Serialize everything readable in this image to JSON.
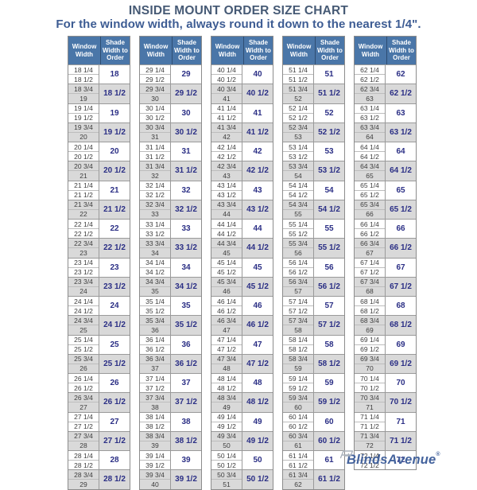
{
  "title": "INSIDE MOUNT ORDER SIZE CHART",
  "subtitle": "For the window width, always round it down to the nearest 1/4\".",
  "logo": {
    "text": "BlindsAvenue",
    "reg": "®"
  },
  "colors": {
    "header_bg": "#4a76a8",
    "header_text": "#ffffff",
    "alt_row_bg": "#d9d9d9",
    "shade_value_text": "#2b2f85",
    "window_value_text": "#3d3d3d",
    "title_text": "#465a75",
    "subtitle_text": "#3d5c93",
    "logo_text": "#44639d"
  },
  "table": {
    "headers": {
      "window": "Window Width",
      "shade": "Shade Width to Order"
    },
    "columns": [
      {
        "pairs": [
          {
            "w": [
              "18 1/4",
              "18 1/2"
            ],
            "s": "18"
          },
          {
            "w": [
              "18 3/4",
              "19"
            ],
            "s": "18 1/2"
          },
          {
            "w": [
              "19 1/4",
              "19 1/2"
            ],
            "s": "19"
          },
          {
            "w": [
              "19 3/4",
              "20"
            ],
            "s": "19 1/2"
          },
          {
            "w": [
              "20 1/4",
              "20 1/2"
            ],
            "s": "20"
          },
          {
            "w": [
              "20 3/4",
              "21"
            ],
            "s": "20 1/2"
          },
          {
            "w": [
              "21 1/4",
              "21 1/2"
            ],
            "s": "21"
          },
          {
            "w": [
              "21 3/4",
              "22"
            ],
            "s": "21 1/2"
          },
          {
            "w": [
              "22 1/4",
              "22 1/2"
            ],
            "s": "22"
          },
          {
            "w": [
              "22 3/4",
              "23"
            ],
            "s": "22 1/2"
          },
          {
            "w": [
              "23 1/4",
              "23 1/2"
            ],
            "s": "23"
          },
          {
            "w": [
              "23 3/4",
              "24"
            ],
            "s": "23 1/2"
          },
          {
            "w": [
              "24 1/4",
              "24 1/2"
            ],
            "s": "24"
          },
          {
            "w": [
              "24 3/4",
              "25"
            ],
            "s": "24 1/2"
          },
          {
            "w": [
              "25 1/4",
              "25 1/2"
            ],
            "s": "25"
          },
          {
            "w": [
              "25 3/4",
              "26"
            ],
            "s": "25 1/2"
          },
          {
            "w": [
              "26 1/4",
              "26 1/2"
            ],
            "s": "26"
          },
          {
            "w": [
              "26 3/4",
              "27"
            ],
            "s": "26 1/2"
          },
          {
            "w": [
              "27 1/4",
              "27 1/2"
            ],
            "s": "27"
          },
          {
            "w": [
              "27 3/4",
              "28"
            ],
            "s": "27 1/2"
          },
          {
            "w": [
              "28 1/4",
              "28 1/2"
            ],
            "s": "28"
          },
          {
            "w": [
              "28 3/4",
              "29"
            ],
            "s": "28 1/2"
          }
        ]
      },
      {
        "pairs": [
          {
            "w": [
              "29 1/4",
              "29 1/2"
            ],
            "s": "29"
          },
          {
            "w": [
              "29 3/4",
              "30"
            ],
            "s": "29 1/2"
          },
          {
            "w": [
              "30 1/4",
              "30 1/2"
            ],
            "s": "30"
          },
          {
            "w": [
              "30 3/4",
              "31"
            ],
            "s": "30 1/2"
          },
          {
            "w": [
              "31 1/4",
              "31 1/2"
            ],
            "s": "31"
          },
          {
            "w": [
              "31 3/4",
              "32"
            ],
            "s": "31 1/2"
          },
          {
            "w": [
              "32 1/4",
              "32 1/2"
            ],
            "s": "32"
          },
          {
            "w": [
              "32 3/4",
              "33"
            ],
            "s": "32 1/2"
          },
          {
            "w": [
              "33 1/4",
              "33 1/2"
            ],
            "s": "33"
          },
          {
            "w": [
              "33 3/4",
              "34"
            ],
            "s": "33 1/2"
          },
          {
            "w": [
              "34 1/4",
              "34 1/2"
            ],
            "s": "34"
          },
          {
            "w": [
              "34 3/4",
              "35"
            ],
            "s": "34 1/2"
          },
          {
            "w": [
              "35 1/4",
              "35 1/2"
            ],
            "s": "35"
          },
          {
            "w": [
              "35 3/4",
              "36"
            ],
            "s": "35 1/2"
          },
          {
            "w": [
              "36 1/4",
              "36 1/2"
            ],
            "s": "36"
          },
          {
            "w": [
              "36 3/4",
              "37"
            ],
            "s": "36 1/2"
          },
          {
            "w": [
              "37 1/4",
              "37 1/2"
            ],
            "s": "37"
          },
          {
            "w": [
              "37 3/4",
              "38"
            ],
            "s": "37 1/2"
          },
          {
            "w": [
              "38 1/4",
              "38 1/2"
            ],
            "s": "38"
          },
          {
            "w": [
              "38 3/4",
              "39"
            ],
            "s": "38 1/2"
          },
          {
            "w": [
              "39 1/4",
              "39 1/2"
            ],
            "s": "39"
          },
          {
            "w": [
              "39 3/4",
              "40"
            ],
            "s": "39 1/2"
          }
        ]
      },
      {
        "pairs": [
          {
            "w": [
              "40 1/4",
              "40 1/2"
            ],
            "s": "40"
          },
          {
            "w": [
              "40 3/4",
              "41"
            ],
            "s": "40 1/2"
          },
          {
            "w": [
              "41 1/4",
              "41 1/2"
            ],
            "s": "41"
          },
          {
            "w": [
              "41 3/4",
              "42"
            ],
            "s": "41 1/2"
          },
          {
            "w": [
              "42 1/4",
              "42 1/2"
            ],
            "s": "42"
          },
          {
            "w": [
              "42 3/4",
              "43"
            ],
            "s": "42 1/2"
          },
          {
            "w": [
              "43 1/4",
              "43 1/2"
            ],
            "s": "43"
          },
          {
            "w": [
              "43 3/4",
              "44"
            ],
            "s": "43 1/2"
          },
          {
            "w": [
              "44 1/4",
              "44 1/2"
            ],
            "s": "44"
          },
          {
            "w": [
              "44 3/4",
              "45"
            ],
            "s": "44 1/2"
          },
          {
            "w": [
              "45 1/4",
              "45 1/2"
            ],
            "s": "45"
          },
          {
            "w": [
              "45 3/4",
              "46"
            ],
            "s": "45 1/2"
          },
          {
            "w": [
              "46 1/4",
              "46 1/2"
            ],
            "s": "46"
          },
          {
            "w": [
              "46 3/4",
              "47"
            ],
            "s": "46 1/2"
          },
          {
            "w": [
              "47 1/4",
              "47 1/2"
            ],
            "s": "47"
          },
          {
            "w": [
              "47 3/4",
              "48"
            ],
            "s": "47 1/2"
          },
          {
            "w": [
              "48 1/4",
              "48 1/2"
            ],
            "s": "48"
          },
          {
            "w": [
              "48 3/4",
              "49"
            ],
            "s": "48 1/2"
          },
          {
            "w": [
              "49 1/4",
              "49 1/2"
            ],
            "s": "49"
          },
          {
            "w": [
              "49 3/4",
              "50"
            ],
            "s": "49 1/2"
          },
          {
            "w": [
              "50 1/4",
              "50 1/2"
            ],
            "s": "50"
          },
          {
            "w": [
              "50 3/4",
              "51"
            ],
            "s": "50 1/2"
          }
        ]
      },
      {
        "pairs": [
          {
            "w": [
              "51 1/4",
              "51 1/2"
            ],
            "s": "51"
          },
          {
            "w": [
              "51 3/4",
              "52"
            ],
            "s": "51 1/2"
          },
          {
            "w": [
              "52 1/4",
              "52 1/2"
            ],
            "s": "52"
          },
          {
            "w": [
              "52 3/4",
              "53"
            ],
            "s": "52 1/2"
          },
          {
            "w": [
              "53 1/4",
              "53 1/2"
            ],
            "s": "53"
          },
          {
            "w": [
              "53 3/4",
              "54"
            ],
            "s": "53 1/2"
          },
          {
            "w": [
              "54 1/4",
              "54 1/2"
            ],
            "s": "54"
          },
          {
            "w": [
              "54 3/4",
              "55"
            ],
            "s": "54 1/2"
          },
          {
            "w": [
              "55 1/4",
              "55 1/2"
            ],
            "s": "55"
          },
          {
            "w": [
              "55 3/4",
              "56"
            ],
            "s": "55 1/2"
          },
          {
            "w": [
              "56 1/4",
              "56 1/2"
            ],
            "s": "56"
          },
          {
            "w": [
              "56 3/4",
              "57"
            ],
            "s": "56 1/2"
          },
          {
            "w": [
              "57 1/4",
              "57 1/2"
            ],
            "s": "57"
          },
          {
            "w": [
              "57 3/4",
              "58"
            ],
            "s": "57 1/2"
          },
          {
            "w": [
              "58 1/4",
              "58 1/2"
            ],
            "s": "58"
          },
          {
            "w": [
              "58 3/4",
              "59"
            ],
            "s": "58 1/2"
          },
          {
            "w": [
              "59 1/4",
              "59 1/2"
            ],
            "s": "59"
          },
          {
            "w": [
              "59 3/4",
              "60"
            ],
            "s": "59 1/2"
          },
          {
            "w": [
              "60 1/4",
              "60 1/2"
            ],
            "s": "60"
          },
          {
            "w": [
              "60 3/4",
              "61"
            ],
            "s": "60 1/2"
          },
          {
            "w": [
              "61 1/4",
              "61 1/2"
            ],
            "s": "61"
          },
          {
            "w": [
              "61 3/4",
              "62"
            ],
            "s": "61 1/2"
          }
        ]
      },
      {
        "pairs": [
          {
            "w": [
              "62 1/4",
              "62 1/2"
            ],
            "s": "62"
          },
          {
            "w": [
              "62 3/4",
              "63"
            ],
            "s": "62 1/2"
          },
          {
            "w": [
              "63 1/4",
              "63 1/2"
            ],
            "s": "63"
          },
          {
            "w": [
              "63 3/4",
              "64"
            ],
            "s": "63 1/2"
          },
          {
            "w": [
              "64 1/4",
              "64 1/2"
            ],
            "s": "64"
          },
          {
            "w": [
              "64 3/4",
              "65"
            ],
            "s": "64 1/2"
          },
          {
            "w": [
              "65 1/4",
              "65 1/2"
            ],
            "s": "65"
          },
          {
            "w": [
              "65 3/4",
              "66"
            ],
            "s": "65 1/2"
          },
          {
            "w": [
              "66 1/4",
              "66 1/2"
            ],
            "s": "66"
          },
          {
            "w": [
              "66 3/4",
              "67"
            ],
            "s": "66 1/2"
          },
          {
            "w": [
              "67 1/4",
              "67 1/2"
            ],
            "s": "67"
          },
          {
            "w": [
              "67 3/4",
              "68"
            ],
            "s": "67 1/2"
          },
          {
            "w": [
              "68 1/4",
              "68 1/2"
            ],
            "s": "68"
          },
          {
            "w": [
              "68 3/4",
              "69"
            ],
            "s": "68 1/2"
          },
          {
            "w": [
              "69 1/4",
              "69 1/2"
            ],
            "s": "69"
          },
          {
            "w": [
              "69 3/4",
              "70"
            ],
            "s": "69 1/2"
          },
          {
            "w": [
              "70 1/4",
              "70 1/2"
            ],
            "s": "70"
          },
          {
            "w": [
              "70 3/4",
              "71"
            ],
            "s": "70 1/2"
          },
          {
            "w": [
              "71 1/4",
              "71 1/2"
            ],
            "s": "71"
          },
          {
            "w": [
              "71 3/4",
              "72"
            ],
            "s": "71 1/2"
          },
          {
            "w": [
              "72 1/4",
              "72 1/2"
            ],
            "s": "72"
          }
        ]
      }
    ]
  }
}
